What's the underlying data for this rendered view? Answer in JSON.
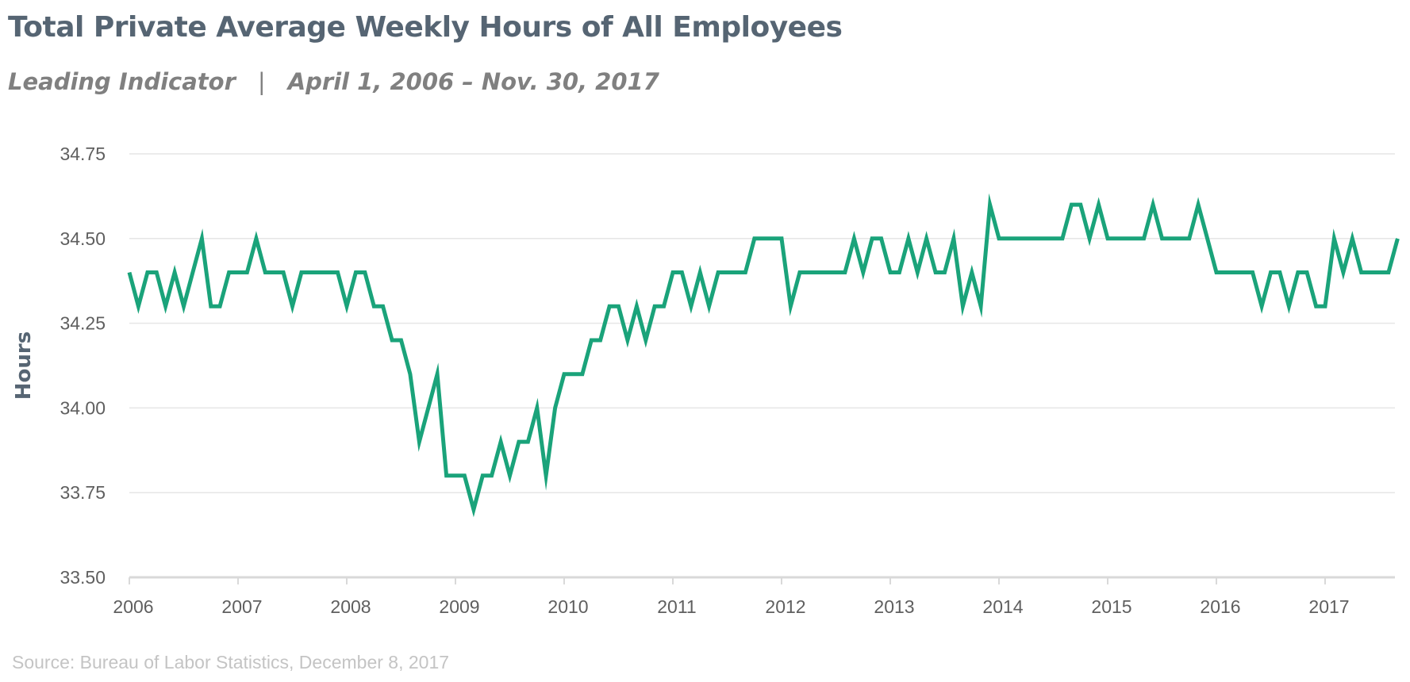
{
  "header": {
    "title": "Total Private Average Weekly Hours of All Employees",
    "subtitle_left": "Leading Indicator",
    "subtitle_sep": "|",
    "subtitle_right": "April 1, 2006 – Nov. 30, 2017"
  },
  "footer": {
    "source": "Source: Bureau of Labor Statistics, December 8, 2017"
  },
  "colors": {
    "line": "#1aa37a",
    "grid": "#e6e6e6",
    "axis": "#d9d9d9",
    "tick_text": "#5f5f5f",
    "title": "#566573"
  },
  "chart_data": {
    "type": "line",
    "ylabel": "Hours",
    "xlabel": "",
    "ylim": [
      33.5,
      34.75
    ],
    "xlim": [
      2006.0,
      2017.667
    ],
    "yticks": [
      "33.50",
      "33.75",
      "34.00",
      "34.25",
      "34.50",
      "34.75"
    ],
    "xticks": [
      "2006",
      "2007",
      "2008",
      "2009",
      "2010",
      "2011",
      "2012",
      "2013",
      "2014",
      "2015",
      "2016",
      "2017"
    ],
    "grid": true,
    "legend": "none",
    "series": [
      {
        "x": [
          2006.0,
          2006.083,
          2006.167,
          2006.25,
          2006.333,
          2006.417,
          2006.5,
          2006.583,
          2006.667,
          2006.75,
          2006.833,
          2006.917,
          2007.0,
          2007.083,
          2007.167,
          2007.25,
          2007.333,
          2007.417,
          2007.5,
          2007.583,
          2007.667,
          2007.75,
          2007.833,
          2007.917,
          2008.0,
          2008.083,
          2008.167,
          2008.25,
          2008.333,
          2008.417,
          2008.5,
          2008.583,
          2008.667,
          2008.75,
          2008.833,
          2008.917,
          2009.0,
          2009.083,
          2009.167,
          2009.25,
          2009.333,
          2009.417,
          2009.5,
          2009.583,
          2009.667,
          2009.75,
          2009.833,
          2009.917,
          2010.0,
          2010.083,
          2010.167,
          2010.25,
          2010.333,
          2010.417,
          2010.5,
          2010.583,
          2010.667,
          2010.75,
          2010.833,
          2010.917,
          2011.0,
          2011.083,
          2011.167,
          2011.25,
          2011.333,
          2011.417,
          2011.5,
          2011.583,
          2011.667,
          2011.75,
          2011.833,
          2011.917,
          2012.0,
          2012.083,
          2012.167,
          2012.25,
          2012.333,
          2012.417,
          2012.5,
          2012.583,
          2012.667,
          2012.75,
          2012.833,
          2012.917,
          2013.0,
          2013.083,
          2013.167,
          2013.25,
          2013.333,
          2013.417,
          2013.5,
          2013.583,
          2013.667,
          2013.75,
          2013.833,
          2013.917,
          2014.0,
          2014.083,
          2014.167,
          2014.25,
          2014.333,
          2014.417,
          2014.5,
          2014.583,
          2014.667,
          2014.75,
          2014.833,
          2014.917,
          2015.0,
          2015.083,
          2015.167,
          2015.25,
          2015.333,
          2015.417,
          2015.5,
          2015.583,
          2015.667,
          2015.75,
          2015.833,
          2015.917,
          2016.0,
          2016.083,
          2016.167,
          2016.25,
          2016.333,
          2016.417,
          2016.5,
          2016.583,
          2016.667,
          2016.75,
          2016.833,
          2016.917,
          2017.0,
          2017.083,
          2017.167,
          2017.25,
          2017.333,
          2017.417,
          2017.5,
          2017.583,
          2017.667
        ],
        "values": [
          34.4,
          34.3,
          34.4,
          34.4,
          34.3,
          34.4,
          34.3,
          34.4,
          34.5,
          34.3,
          34.3,
          34.4,
          34.4,
          34.4,
          34.5,
          34.4,
          34.4,
          34.4,
          34.3,
          34.4,
          34.4,
          34.4,
          34.4,
          34.4,
          34.3,
          34.4,
          34.4,
          34.3,
          34.3,
          34.2,
          34.2,
          34.1,
          33.9,
          34.0,
          34.1,
          33.8,
          33.8,
          33.8,
          33.7,
          33.8,
          33.8,
          33.9,
          33.8,
          33.9,
          33.9,
          34.0,
          33.8,
          34.0,
          34.1,
          34.1,
          34.1,
          34.2,
          34.2,
          34.3,
          34.3,
          34.2,
          34.3,
          34.2,
          34.3,
          34.3,
          34.4,
          34.4,
          34.3,
          34.4,
          34.3,
          34.4,
          34.4,
          34.4,
          34.4,
          34.5,
          34.5,
          34.5,
          34.5,
          34.3,
          34.4,
          34.4,
          34.4,
          34.4,
          34.4,
          34.4,
          34.5,
          34.4,
          34.5,
          34.5,
          34.4,
          34.4,
          34.5,
          34.4,
          34.5,
          34.4,
          34.4,
          34.5,
          34.3,
          34.4,
          34.3,
          34.6,
          34.5,
          34.5,
          34.5,
          34.5,
          34.5,
          34.5,
          34.5,
          34.5,
          34.6,
          34.6,
          34.5,
          34.6,
          34.5,
          34.5,
          34.5,
          34.5,
          34.5,
          34.6,
          34.5,
          34.5,
          34.5,
          34.5,
          34.6,
          34.5,
          34.4,
          34.4,
          34.4,
          34.4,
          34.4,
          34.3,
          34.4,
          34.4,
          34.3,
          34.4,
          34.4,
          34.3,
          34.3,
          34.5,
          34.4,
          34.5,
          34.4,
          34.4,
          34.4,
          34.4,
          34.5
        ]
      }
    ]
  }
}
